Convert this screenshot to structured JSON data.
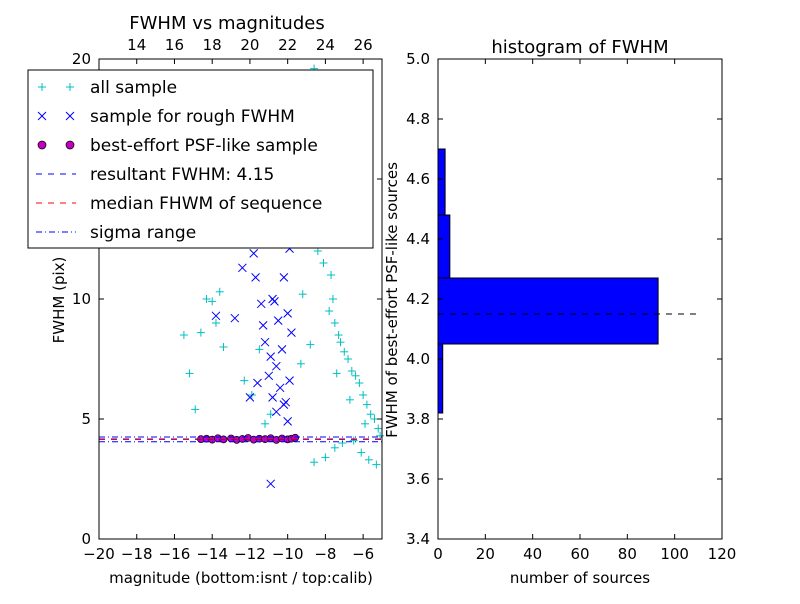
{
  "chart_data": [
    {
      "type": "scatter",
      "title": "FWHM vs magnitudes",
      "xlabel": "magnitude (bottom:isnt / top:calib)",
      "ylabel": "FWHM (pix)",
      "xlim": [
        -20,
        -5
      ],
      "ylim": [
        0,
        20
      ],
      "x_ticks": [
        -20,
        -18,
        -16,
        -14,
        -12,
        -10,
        -8,
        -6
      ],
      "x_tick_labels": [
        "−20",
        "−18",
        "−16",
        "−14",
        "−12",
        "−10",
        "−8",
        "−6"
      ],
      "y_ticks": [
        0,
        5,
        10,
        15,
        20
      ],
      "y_tick_labels": [
        "0",
        "5",
        "10",
        "15",
        "20"
      ],
      "top_axis": {
        "label_source": "calib",
        "ticks": [
          14,
          16,
          18,
          20,
          22,
          24,
          26
        ],
        "offset_from_bottom": 32
      },
      "legend": {
        "position": "top-left",
        "entries": [
          {
            "label": "all sample",
            "marker": "plus",
            "color": "#00bfbf"
          },
          {
            "label": "sample for rough FWHM",
            "marker": "x",
            "color": "#0000ff"
          },
          {
            "label": "best-effort PSF-like sample",
            "marker": "circle",
            "color": "#bf00bf"
          },
          {
            "label": "resultant FWHM: 4.15",
            "marker": "dashed",
            "color": "#0000ff"
          },
          {
            "label": "median FHWM of sequence",
            "marker": "dashed",
            "color": "#ff0000"
          },
          {
            "label": "sigma range",
            "marker": "dashdot",
            "color": "#0000ff"
          }
        ]
      },
      "series": [
        {
          "marker": "plus",
          "color": "#00bfbf",
          "points": [
            [
              -15.5,
              8.5
            ],
            [
              -15.2,
              6.9
            ],
            [
              -14.9,
              5.4
            ],
            [
              -14.6,
              8.6
            ],
            [
              -14.3,
              10.0
            ],
            [
              -14.0,
              9.9
            ],
            [
              -13.8,
              9.0
            ],
            [
              -13.6,
              10.3
            ],
            [
              -13.4,
              8.0
            ],
            [
              -12.3,
              6.6
            ],
            [
              -11.9,
              6.0
            ],
            [
              -11.5,
              7.9
            ],
            [
              -11.2,
              4.8
            ],
            [
              -10.9,
              5.2
            ],
            [
              -9.5,
              15.4
            ],
            [
              -9.2,
              10.2
            ],
            [
              -9.0,
              12.6
            ],
            [
              -8.9,
              19.2
            ],
            [
              -8.7,
              15.0
            ],
            [
              -8.6,
              19.6
            ],
            [
              -8.5,
              16.3
            ],
            [
              -8.4,
              12.0
            ],
            [
              -8.3,
              17.0
            ],
            [
              -8.2,
              14.5
            ],
            [
              -8.1,
              11.5
            ],
            [
              -8.0,
              13.2
            ],
            [
              -7.9,
              12.8
            ],
            [
              -7.8,
              9.5
            ],
            [
              -7.7,
              11.0
            ],
            [
              -7.6,
              10.0
            ],
            [
              -7.5,
              9.0
            ],
            [
              -7.3,
              8.5
            ],
            [
              -7.2,
              8.2
            ],
            [
              -7.0,
              7.8
            ],
            [
              -6.8,
              7.5
            ],
            [
              -6.6,
              7.0
            ],
            [
              -6.4,
              6.8
            ],
            [
              -6.2,
              6.5
            ],
            [
              -6.0,
              6.0
            ],
            [
              -5.8,
              5.6
            ],
            [
              -5.6,
              5.2
            ],
            [
              -5.4,
              5.0
            ],
            [
              -5.2,
              4.6
            ],
            [
              -5.1,
              4.3
            ],
            [
              -8.6,
              3.2
            ],
            [
              -8.0,
              3.4
            ],
            [
              -7.5,
              3.8
            ],
            [
              -7.1,
              4.0
            ],
            [
              -6.5,
              4.1
            ],
            [
              -6.1,
              3.6
            ],
            [
              -5.7,
              3.3
            ],
            [
              -5.3,
              3.1
            ],
            [
              -5.9,
              4.8
            ],
            [
              -6.7,
              5.8
            ],
            [
              -7.4,
              6.9
            ],
            [
              -8.8,
              8.1
            ],
            [
              -9.3,
              7.3
            ]
          ]
        },
        {
          "marker": "x",
          "color": "#0000ff",
          "points": [
            [
              -13.8,
              9.3
            ],
            [
              -12.8,
              9.2
            ],
            [
              -12.4,
              11.3
            ],
            [
              -11.8,
              11.9
            ],
            [
              -11.7,
              10.9
            ],
            [
              -11.4,
              9.8
            ],
            [
              -11.2,
              8.2
            ],
            [
              -10.9,
              7.6
            ],
            [
              -10.6,
              7.2
            ],
            [
              -10.8,
              10.0
            ],
            [
              -10.5,
              9.1
            ],
            [
              -10.2,
              10.9
            ],
            [
              -10.0,
              9.4
            ],
            [
              -9.9,
              12.1
            ],
            [
              -10.7,
              12.6
            ],
            [
              -10.4,
              6.3
            ],
            [
              -10.2,
              5.6
            ],
            [
              -10.0,
              4.9
            ],
            [
              -10.8,
              5.9
            ],
            [
              -11.0,
              6.8
            ],
            [
              -11.3,
              8.9
            ],
            [
              -10.3,
              7.9
            ],
            [
              -9.8,
              8.6
            ],
            [
              -10.6,
              5.3
            ],
            [
              -10.9,
              2.3
            ],
            [
              -10.1,
              5.7
            ],
            [
              -9.9,
              6.6
            ],
            [
              -10.7,
              9.9
            ],
            [
              -11.6,
              6.5
            ],
            [
              -12.0,
              5.9
            ]
          ]
        },
        {
          "marker": "circle",
          "color": "#bf00bf",
          "points": [
            [
              -14.6,
              4.16
            ],
            [
              -14.3,
              4.18
            ],
            [
              -14.0,
              4.14
            ],
            [
              -13.7,
              4.2
            ],
            [
              -13.4,
              4.15
            ],
            [
              -13.0,
              4.19
            ],
            [
              -12.7,
              4.13
            ],
            [
              -12.4,
              4.17
            ],
            [
              -12.1,
              4.21
            ],
            [
              -11.8,
              4.14
            ],
            [
              -11.5,
              4.18
            ],
            [
              -11.2,
              4.16
            ],
            [
              -10.9,
              4.2
            ],
            [
              -10.6,
              4.13
            ],
            [
              -10.3,
              4.19
            ],
            [
              -10.0,
              4.15
            ],
            [
              -9.8,
              4.18
            ],
            [
              -9.6,
              4.22
            ]
          ]
        }
      ],
      "hlines": [
        {
          "y": 4.15,
          "style": "dashed",
          "color": "#0000ff"
        },
        {
          "y": 4.17,
          "style": "dashed",
          "color": "#ff0000"
        },
        {
          "y": 4.25,
          "style": "dashdot",
          "color": "#0000ff"
        },
        {
          "y": 4.05,
          "style": "dashdot",
          "color": "#0000ff"
        }
      ]
    },
    {
      "type": "bar",
      "orientation": "horizontal",
      "title": "histogram of FWHM",
      "xlabel": "number of sources",
      "ylabel": "FWHM of best-effort PSF-like sources",
      "xlim": [
        0,
        120
      ],
      "ylim": [
        3.4,
        5.0
      ],
      "x_ticks": [
        0,
        20,
        40,
        60,
        80,
        100,
        120
      ],
      "x_tick_labels": [
        "0",
        "20",
        "40",
        "60",
        "80",
        "100",
        "120"
      ],
      "y_ticks": [
        3.4,
        3.6,
        3.8,
        4.0,
        4.2,
        4.4,
        4.6,
        4.8,
        5.0
      ],
      "y_tick_labels": [
        "3.4",
        "3.6",
        "3.8",
        "4.0",
        "4.2",
        "4.4",
        "4.6",
        "4.8",
        "5.0"
      ],
      "bars": [
        {
          "y0": 3.82,
          "y1": 4.05,
          "value": 2
        },
        {
          "y0": 4.05,
          "y1": 4.27,
          "value": 93
        },
        {
          "y0": 4.27,
          "y1": 4.48,
          "value": 5
        },
        {
          "y0": 4.48,
          "y1": 4.7,
          "value": 3
        }
      ],
      "bar_color": "#0000ff",
      "hline": {
        "y": 4.15,
        "x_end": 110,
        "style": "dashed",
        "color": "#000000"
      }
    }
  ]
}
